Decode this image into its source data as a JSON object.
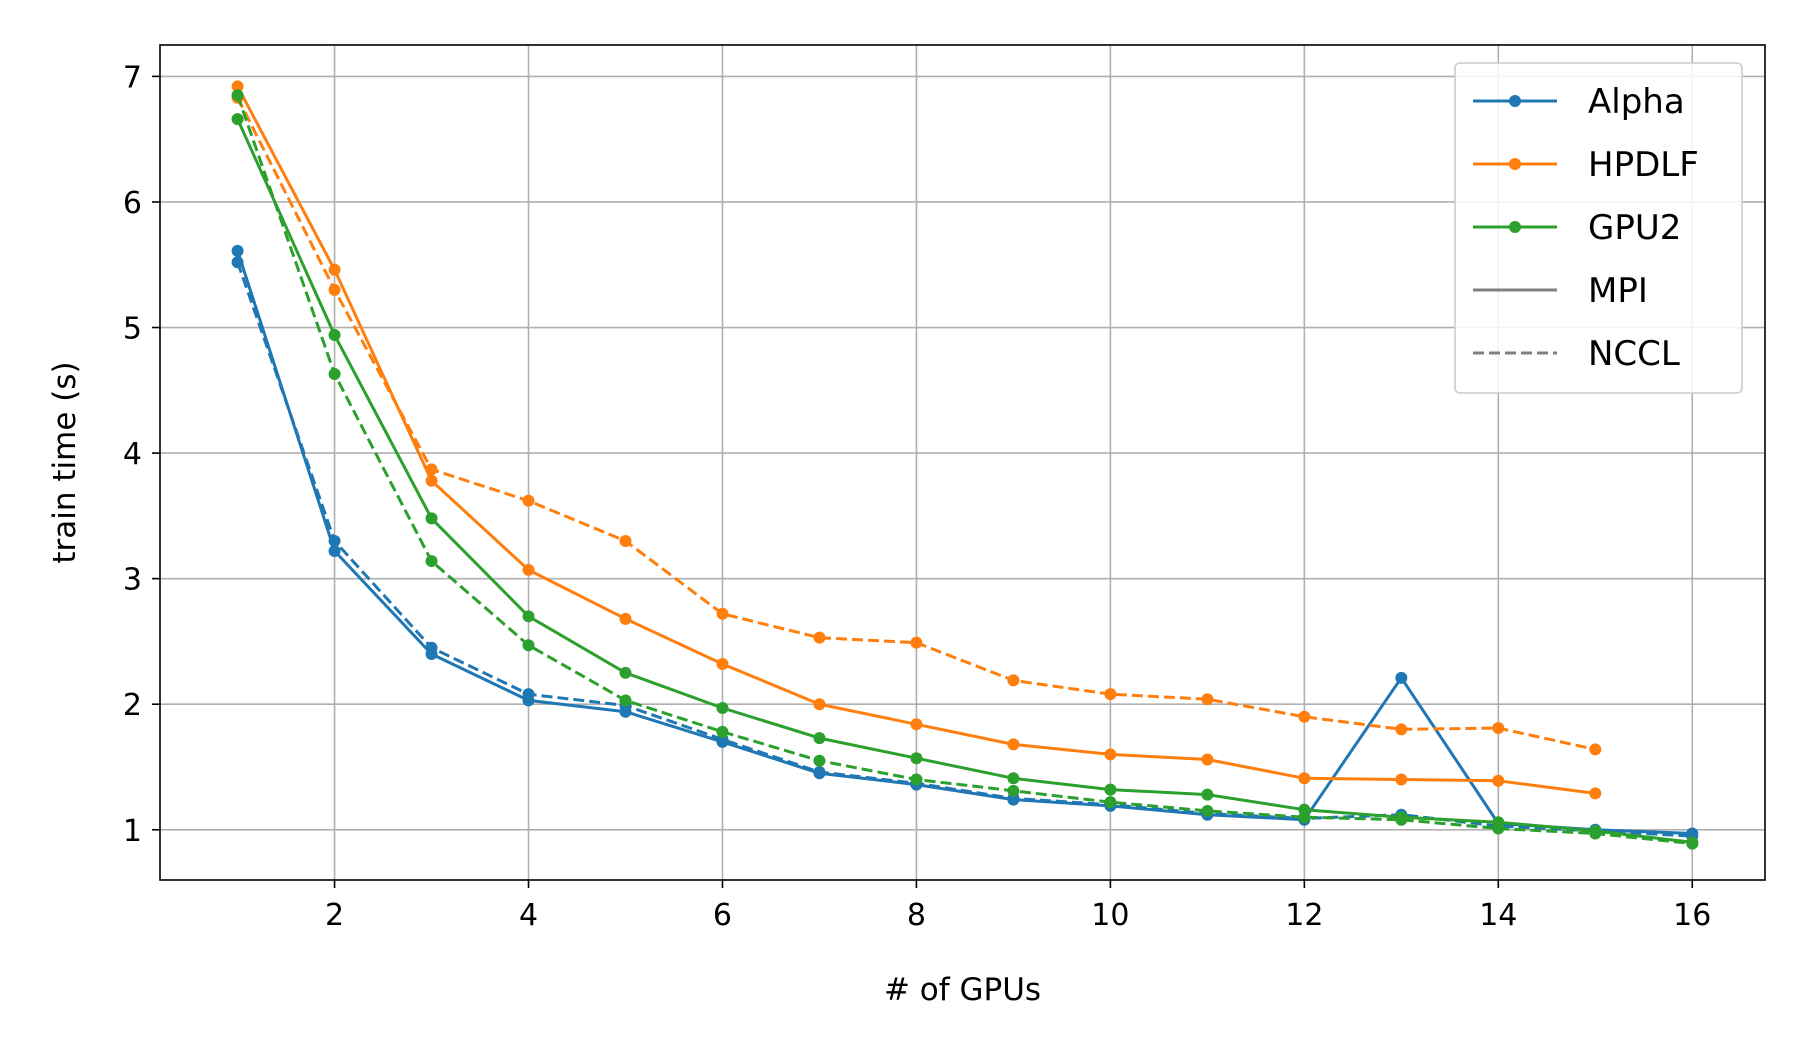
{
  "chart_data": {
    "type": "line",
    "title": "",
    "xlabel": "# of GPUs",
    "ylabel": "train time (s)",
    "xlim": [
      0.2,
      16.75
    ],
    "ylim": [
      0.6,
      7.25
    ],
    "xticks": [
      2,
      4,
      6,
      8,
      10,
      12,
      14,
      16
    ],
    "yticks": [
      1,
      2,
      3,
      4,
      5,
      6,
      7
    ],
    "grid": true,
    "legend_position": "top-right",
    "legend": [
      {
        "label": "Alpha",
        "color": "#1f77b4",
        "style": "solid",
        "marker": true
      },
      {
        "label": "HPDLF",
        "color": "#ff7f0e",
        "style": "solid",
        "marker": true
      },
      {
        "label": "GPU2",
        "color": "#2ca02c",
        "style": "solid",
        "marker": true
      },
      {
        "label": "MPI",
        "color": "#808080",
        "style": "solid",
        "marker": false
      },
      {
        "label": "NCCL",
        "color": "#808080",
        "style": "dashed",
        "marker": false
      }
    ],
    "series": [
      {
        "system": "Alpha",
        "backend": "MPI",
        "color": "#1f77b4",
        "style": "solid",
        "x": [
          1,
          2,
          3,
          4,
          5,
          6,
          7,
          8,
          9,
          10,
          11,
          12,
          13,
          14,
          15,
          16
        ],
        "y": [
          5.61,
          3.22,
          2.4,
          2.03,
          1.94,
          1.7,
          1.45,
          1.36,
          1.24,
          1.19,
          1.12,
          1.08,
          2.21,
          1.05,
          1.0,
          0.97
        ]
      },
      {
        "system": "Alpha",
        "backend": "NCCL",
        "color": "#1f77b4",
        "style": "dashed",
        "x": [
          1,
          2,
          3,
          4,
          5,
          6,
          7,
          8,
          9,
          10,
          11,
          12,
          13,
          14,
          15,
          16
        ],
        "y": [
          5.52,
          3.3,
          2.45,
          2.08,
          1.99,
          1.72,
          1.46,
          1.37,
          1.25,
          1.2,
          1.13,
          1.09,
          1.12,
          1.03,
          0.99,
          0.95
        ]
      },
      {
        "system": "HPDLF",
        "backend": "MPI",
        "color": "#ff7f0e",
        "style": "solid",
        "x": [
          1,
          2,
          3,
          4,
          5,
          6,
          7,
          8,
          9,
          10,
          11,
          12,
          13,
          14,
          15
        ],
        "y": [
          6.92,
          5.46,
          3.78,
          3.07,
          2.68,
          2.32,
          2.0,
          1.84,
          1.68,
          1.6,
          1.56,
          1.41,
          1.4,
          1.39,
          1.29
        ]
      },
      {
        "system": "HPDLF",
        "backend": "NCCL",
        "color": "#ff7f0e",
        "style": "dashed",
        "x": [
          1,
          2,
          3,
          4,
          5,
          6,
          7,
          8,
          9,
          10,
          11,
          12,
          13,
          14,
          15
        ],
        "y": [
          6.83,
          5.3,
          3.87,
          3.62,
          3.3,
          2.72,
          2.53,
          2.49,
          2.19,
          2.08,
          2.04,
          1.9,
          1.8,
          1.81,
          1.64
        ]
      },
      {
        "system": "GPU2",
        "backend": "MPI",
        "color": "#2ca02c",
        "style": "solid",
        "x": [
          1,
          2,
          3,
          4,
          5,
          6,
          7,
          8,
          9,
          10,
          11,
          12,
          13,
          14,
          15,
          16
        ],
        "y": [
          6.66,
          4.94,
          3.48,
          2.7,
          2.25,
          1.97,
          1.73,
          1.57,
          1.41,
          1.32,
          1.28,
          1.16,
          1.1,
          1.06,
          0.99,
          0.9
        ]
      },
      {
        "system": "GPU2",
        "backend": "NCCL",
        "color": "#2ca02c",
        "style": "dashed",
        "x": [
          1,
          2,
          3,
          4,
          5,
          6,
          7,
          8,
          9,
          10,
          11,
          12,
          13,
          14,
          15,
          16
        ],
        "y": [
          6.85,
          4.63,
          3.14,
          2.47,
          2.03,
          1.78,
          1.55,
          1.4,
          1.31,
          1.22,
          1.15,
          1.1,
          1.08,
          1.01,
          0.97,
          0.89
        ]
      }
    ]
  }
}
